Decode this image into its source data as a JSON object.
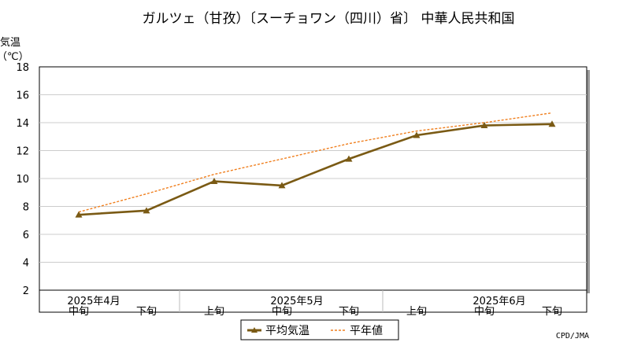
{
  "chart_data": {
    "type": "line",
    "title": "ガルツェ（甘孜）〔スーチョワン（四川）省〕 中華人民共和国",
    "ylabel_line1": "気温",
    "ylabel_line2": "（℃）",
    "ylim": [
      2,
      18
    ],
    "yticks": [
      "2",
      "4",
      "6",
      "8",
      "10",
      "12",
      "14",
      "16",
      "18"
    ],
    "grid": true,
    "categories": [
      "中旬",
      "下旬",
      "上旬",
      "中旬",
      "下旬",
      "上旬",
      "中旬",
      "下旬"
    ],
    "month_labels": [
      {
        "label": "2025年4月",
        "at": 0
      },
      {
        "label": "2025年5月",
        "at": 3
      },
      {
        "label": "2025年6月",
        "at": 6
      }
    ],
    "series": [
      {
        "name": "平均気温",
        "color": "#7a5a14",
        "style": "solid-triangle",
        "values": [
          7.4,
          7.7,
          9.8,
          9.5,
          11.4,
          13.1,
          13.8,
          13.9
        ]
      },
      {
        "name": "平年値",
        "color": "#f07f1e",
        "style": "dashed",
        "values": [
          7.6,
          8.9,
          10.3,
          11.4,
          12.5,
          13.4,
          14.0,
          14.7
        ]
      }
    ],
    "legend_position": "bottom-center",
    "credit": "CPD/JMA"
  }
}
